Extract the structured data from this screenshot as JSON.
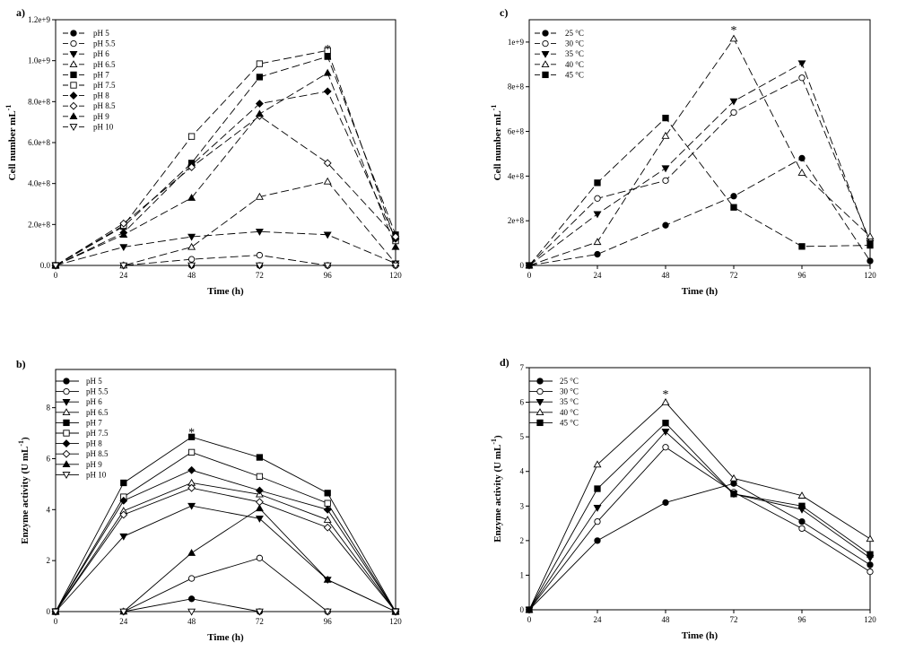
{
  "chart_data": [
    {
      "id": "a",
      "type": "line",
      "panel_label": "a)",
      "xlabel": "Time (h)",
      "ylabel": "Cell number mL",
      "ylabel_sup": "-1",
      "x": [
        0,
        24,
        48,
        72,
        96,
        120
      ],
      "xticks": [
        "0",
        "24",
        "48",
        "72",
        "96",
        "120"
      ],
      "ylim": [
        0,
        1200000000.0
      ],
      "yticks": [
        {
          "v": 0,
          "t": "0.0"
        },
        {
          "v": 200000000.0,
          "t": "2.0e+8"
        },
        {
          "v": 400000000.0,
          "t": "4.0e+8"
        },
        {
          "v": 600000000.0,
          "t": "6.0e+8"
        },
        {
          "v": 800000000.0,
          "t": "8.0e+8"
        },
        {
          "v": 1000000000.0,
          "t": "1.0e+9"
        },
        {
          "v": 1200000000.0,
          "t": "1.2e+9"
        }
      ],
      "line_style": "dashed",
      "legend_position": "top-left",
      "series": [
        {
          "name": "pH 5",
          "marker": "circle-filled",
          "values": [
            0,
            0,
            0,
            0,
            0,
            0
          ]
        },
        {
          "name": "pH 5.5",
          "marker": "circle-open",
          "values": [
            0,
            0,
            30000000.0,
            50000000.0,
            0,
            0
          ]
        },
        {
          "name": "pH 6",
          "marker": "tri-down-filled",
          "values": [
            0,
            90000000.0,
            140000000.0,
            165000000.0,
            150000000.0,
            10000000.0
          ]
        },
        {
          "name": "pH 6.5",
          "marker": "tri-up-open",
          "values": [
            0,
            0,
            90000000.0,
            335000000.0,
            410000000.0,
            10000000.0
          ]
        },
        {
          "name": "pH 7",
          "marker": "square-filled",
          "values": [
            0,
            190000000.0,
            500000000.0,
            920000000.0,
            1020000000.0,
            150000000.0
          ]
        },
        {
          "name": "pH 7.5",
          "marker": "square-open",
          "values": [
            0,
            195000000.0,
            630000000.0,
            985000000.0,
            1050000000.0,
            120000000.0
          ]
        },
        {
          "name": "pH 8",
          "marker": "diamond-filled",
          "values": [
            0,
            160000000.0,
            490000000.0,
            790000000.0,
            850000000.0,
            130000000.0
          ]
        },
        {
          "name": "pH 8.5",
          "marker": "diamond-open",
          "values": [
            0,
            205000000.0,
            480000000.0,
            730000000.0,
            500000000.0,
            140000000.0
          ]
        },
        {
          "name": "pH 9",
          "marker": "tri-up-filled",
          "values": [
            0,
            150000000.0,
            330000000.0,
            740000000.0,
            940000000.0,
            90000000.0
          ]
        },
        {
          "name": "pH 10",
          "marker": "tri-down-open",
          "values": [
            0,
            0,
            0,
            0,
            0,
            0
          ]
        }
      ],
      "annotations": [
        {
          "text": "*",
          "x": 96,
          "y": 1060000000.0
        }
      ]
    },
    {
      "id": "b",
      "type": "line",
      "panel_label": "b)",
      "xlabel": "Time (h)",
      "ylabel": "Enzyme activity (U mL",
      "ylabel_sup": "-1",
      "ylabel_end": ")",
      "x": [
        0,
        24,
        48,
        72,
        96,
        120
      ],
      "xticks": [
        "0",
        "24",
        "48",
        "72",
        "96",
        "120"
      ],
      "ylim": [
        0,
        9.5
      ],
      "yticks": [
        {
          "v": 0,
          "t": "0"
        },
        {
          "v": 2,
          "t": "2"
        },
        {
          "v": 4,
          "t": "4"
        },
        {
          "v": 6,
          "t": "6"
        },
        {
          "v": 8,
          "t": "8"
        }
      ],
      "line_style": "solid",
      "legend_position": "top-left",
      "series": [
        {
          "name": "pH 5",
          "marker": "circle-filled",
          "values": [
            0,
            0,
            0.5,
            0,
            0,
            0
          ]
        },
        {
          "name": "pH 5.5",
          "marker": "circle-open",
          "values": [
            0,
            0,
            1.3,
            2.1,
            0,
            0
          ]
        },
        {
          "name": "pH 6",
          "marker": "tri-down-filled",
          "values": [
            0,
            2.95,
            4.15,
            3.65,
            1.25,
            0
          ]
        },
        {
          "name": "pH 6.5",
          "marker": "tri-up-open",
          "values": [
            0,
            3.95,
            5.05,
            4.6,
            3.6,
            0
          ]
        },
        {
          "name": "pH 7",
          "marker": "square-filled",
          "values": [
            0,
            5.05,
            6.85,
            6.05,
            4.65,
            0
          ]
        },
        {
          "name": "pH 7.5",
          "marker": "square-open",
          "values": [
            0,
            4.5,
            6.25,
            5.3,
            4.25,
            0
          ]
        },
        {
          "name": "pH 8",
          "marker": "diamond-filled",
          "values": [
            0,
            4.35,
            5.55,
            4.75,
            4.0,
            0
          ]
        },
        {
          "name": "pH 8.5",
          "marker": "diamond-open",
          "values": [
            0,
            3.8,
            4.85,
            4.3,
            3.3,
            0
          ]
        },
        {
          "name": "pH 9",
          "marker": "tri-up-filled",
          "values": [
            0,
            0,
            2.3,
            4.05,
            1.25,
            0
          ]
        },
        {
          "name": "pH 10",
          "marker": "tri-down-open",
          "values": [
            0,
            0,
            0,
            0,
            0,
            0
          ]
        }
      ],
      "annotations": [
        {
          "text": "*",
          "x": 48,
          "y": 7.05
        }
      ]
    },
    {
      "id": "c",
      "type": "line",
      "panel_label": "c)",
      "xlabel": "Time (h)",
      "ylabel": "Cell number mL",
      "ylabel_sup": "-1",
      "x": [
        0,
        24,
        48,
        72,
        96,
        120
      ],
      "xticks": [
        "0",
        "24",
        "48",
        "72",
        "96",
        "120"
      ],
      "ylim": [
        0,
        1100000000.0
      ],
      "yticks": [
        {
          "v": 0,
          "t": "0"
        },
        {
          "v": 200000000.0,
          "t": "2e+8"
        },
        {
          "v": 400000000.0,
          "t": "4e+8"
        },
        {
          "v": 600000000.0,
          "t": "6e+8"
        },
        {
          "v": 800000000.0,
          "t": "8e+8"
        },
        {
          "v": 1000000000.0,
          "t": "1e+9"
        }
      ],
      "line_style": "dashed",
      "legend_position": "top-left",
      "series": [
        {
          "name": "25 °C",
          "marker": "circle-filled",
          "values": [
            0,
            50000000.0,
            180000000.0,
            310000000.0,
            480000000.0,
            20000000.0
          ]
        },
        {
          "name": "30 °C",
          "marker": "circle-open",
          "values": [
            0,
            300000000.0,
            380000000.0,
            685000000.0,
            840000000.0,
            110000000.0
          ]
        },
        {
          "name": "35 °C",
          "marker": "tri-down-filled",
          "values": [
            0,
            230000000.0,
            435000000.0,
            735000000.0,
            905000000.0,
            100000000.0
          ]
        },
        {
          "name": "40 °C",
          "marker": "tri-up-open",
          "values": [
            0,
            105000000.0,
            580000000.0,
            1015000000.0,
            415000000.0,
            130000000.0
          ]
        },
        {
          "name": "45 °C",
          "marker": "square-filled",
          "values": [
            0,
            370000000.0,
            660000000.0,
            260000000.0,
            85000000.0,
            90000000.0
          ]
        }
      ],
      "annotations": [
        {
          "text": "*",
          "x": 72,
          "y": 1055000000.0
        }
      ]
    },
    {
      "id": "d",
      "type": "line",
      "panel_label": "d)",
      "xlabel": "Time (h)",
      "ylabel": "Enzyme activity (U mL",
      "ylabel_sup": "-1",
      "ylabel_end": ")",
      "x": [
        0,
        24,
        48,
        72,
        96,
        120
      ],
      "xticks": [
        "0",
        "24",
        "48",
        "72",
        "96",
        "120"
      ],
      "ylim": [
        0,
        7
      ],
      "yticks": [
        {
          "v": 0,
          "t": "0"
        },
        {
          "v": 1,
          "t": "1"
        },
        {
          "v": 2,
          "t": "2"
        },
        {
          "v": 3,
          "t": "3"
        },
        {
          "v": 4,
          "t": "4"
        },
        {
          "v": 5,
          "t": "5"
        },
        {
          "v": 6,
          "t": "6"
        },
        {
          "v": 7,
          "t": "7"
        }
      ],
      "line_style": "solid",
      "legend_position": "top-left",
      "series": [
        {
          "name": "25 °C",
          "marker": "circle-filled",
          "values": [
            0,
            2.0,
            3.1,
            3.65,
            2.55,
            1.3
          ]
        },
        {
          "name": "30 °C",
          "marker": "circle-open",
          "values": [
            0,
            2.55,
            4.7,
            3.4,
            2.35,
            1.1
          ]
        },
        {
          "name": "35 °C",
          "marker": "tri-down-filled",
          "values": [
            0,
            2.95,
            5.15,
            3.35,
            2.9,
            1.5
          ]
        },
        {
          "name": "40 °C",
          "marker": "tri-up-open",
          "values": [
            0,
            4.2,
            6.0,
            3.8,
            3.3,
            2.05
          ]
        },
        {
          "name": "45 °C",
          "marker": "square-filled",
          "values": [
            0,
            3.5,
            5.4,
            3.35,
            3.0,
            1.6
          ]
        }
      ],
      "annotations": [
        {
          "text": "*",
          "x": 48,
          "y": 6.25
        }
      ]
    }
  ]
}
